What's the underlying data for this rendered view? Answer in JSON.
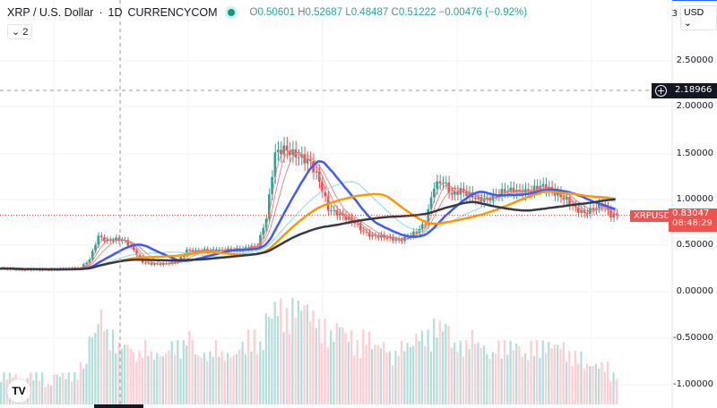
{
  "header": {
    "symbol": "XRP / U.S. Dollar",
    "interval": "1D",
    "exchange": "CURRENCYCOM",
    "open_label": "O",
    "open": "0.50601",
    "high_label": "H",
    "high": "0.52687",
    "low_label": "L",
    "low": "0.48487",
    "close_label": "C",
    "close": "0.51222",
    "change": "−0.00476 (−0.92%)",
    "indicators_collapse": "⌄ 2"
  },
  "axis": {
    "currency": "USD ⌄",
    "top_partial": "3",
    "ticks": [
      "2.50000",
      "2.00000",
      "1.50000",
      "1.00000",
      "0.50000",
      "0.00000",
      "-0.50000",
      "-1.00000"
    ],
    "crosshair_price": "2.18966",
    "crosshair_add_icon": "plus-circle-icon"
  },
  "last_price": {
    "symbol_label": "XRPUSD",
    "price": "0.83047",
    "countdown": "08:48:29",
    "color": "#ef5350"
  },
  "colors": {
    "up": "#26a69a",
    "down": "#ef5350"
  },
  "chart_data": {
    "type": "candlestick",
    "y_range": [
      -1.1,
      3.0
    ],
    "closes": [
      0.25,
      0.25,
      0.24,
      0.24,
      0.24,
      0.24,
      0.24,
      0.25,
      0.25,
      0.26,
      0.35,
      0.6,
      0.55,
      0.57,
      0.55,
      0.45,
      0.32,
      0.3,
      0.3,
      0.31,
      0.33,
      0.45,
      0.44,
      0.45,
      0.45,
      0.45,
      0.46,
      0.46,
      0.48,
      0.5,
      0.8,
      1.5,
      1.55,
      1.5,
      1.45,
      1.4,
      1.2,
      0.9,
      0.85,
      0.8,
      0.75,
      0.65,
      0.6,
      0.6,
      0.58,
      0.55,
      0.6,
      0.65,
      0.75,
      1.15,
      1.2,
      1.05,
      1.1,
      1.05,
      1.0,
      1.0,
      1.05,
      1.1,
      1.1,
      1.08,
      1.1,
      1.15,
      1.12,
      1.05,
      1.0,
      0.9,
      0.85,
      0.9,
      0.95,
      0.83
    ],
    "volumes": [
      3,
      3,
      2,
      3,
      3,
      2,
      3,
      3,
      3,
      4,
      7,
      9,
      7,
      6,
      6,
      5,
      6,
      5,
      5,
      6,
      6,
      7,
      5,
      5,
      6,
      5,
      5,
      6,
      7,
      6,
      9,
      10,
      9,
      10,
      10,
      9,
      8,
      7,
      8,
      7,
      6,
      7,
      6,
      6,
      5,
      6,
      6,
      7,
      7,
      8,
      8,
      6,
      6,
      7,
      6,
      5,
      6,
      6,
      6,
      5,
      6,
      6,
      6,
      6,
      5,
      5,
      4,
      4,
      4,
      3
    ]
  }
}
